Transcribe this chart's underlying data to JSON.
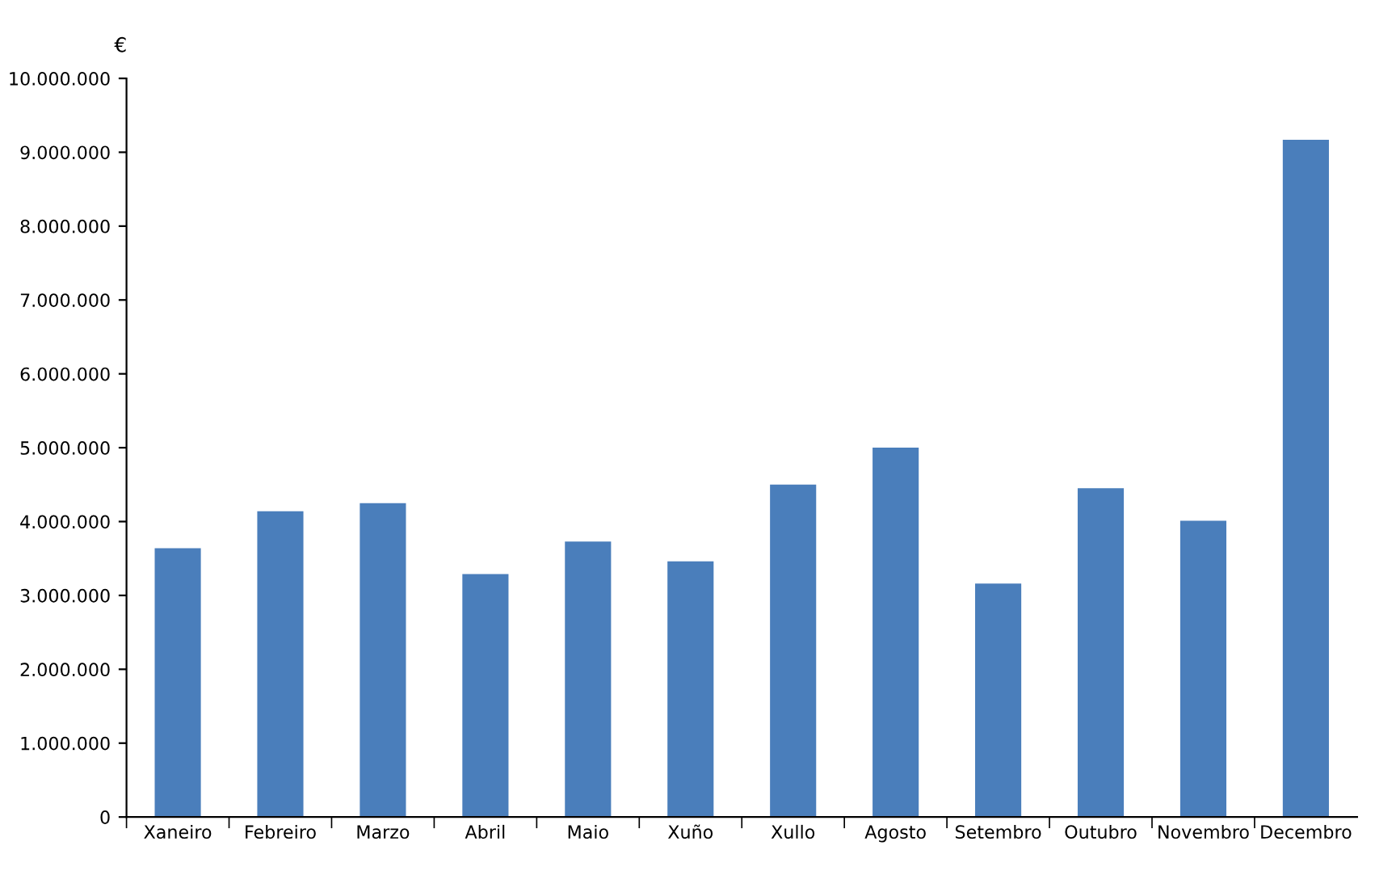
{
  "chart_data": {
    "type": "bar",
    "ylabel": "€",
    "categories": [
      "Xaneiro",
      "Febreiro",
      "Marzo",
      "Abril",
      "Maio",
      "Xuño",
      "Xullo",
      "Agosto",
      "Setembro",
      "Outubro",
      "Novembro",
      "Decembro"
    ],
    "values": [
      3640000,
      4140000,
      4250000,
      3290000,
      3730000,
      3460000,
      4500000,
      5000000,
      3160000,
      4450000,
      4010000,
      9170000
    ],
    "color": "#4a7ebb",
    "ylim": [
      0,
      10000000
    ],
    "yticks": [
      {
        "value": 0,
        "label": "0"
      },
      {
        "value": 1000000,
        "label": "1.000.000"
      },
      {
        "value": 2000000,
        "label": "2.000.000"
      },
      {
        "value": 3000000,
        "label": "3.000.000"
      },
      {
        "value": 4000000,
        "label": "4.000.000"
      },
      {
        "value": 5000000,
        "label": "5.000.000"
      },
      {
        "value": 6000000,
        "label": "6.000.000"
      },
      {
        "value": 7000000,
        "label": "7.000.000"
      },
      {
        "value": 8000000,
        "label": "8.000.000"
      },
      {
        "value": 9000000,
        "label": "9.000.000"
      },
      {
        "value": 10000000,
        "label": "10.000.000"
      }
    ],
    "grid": false
  }
}
